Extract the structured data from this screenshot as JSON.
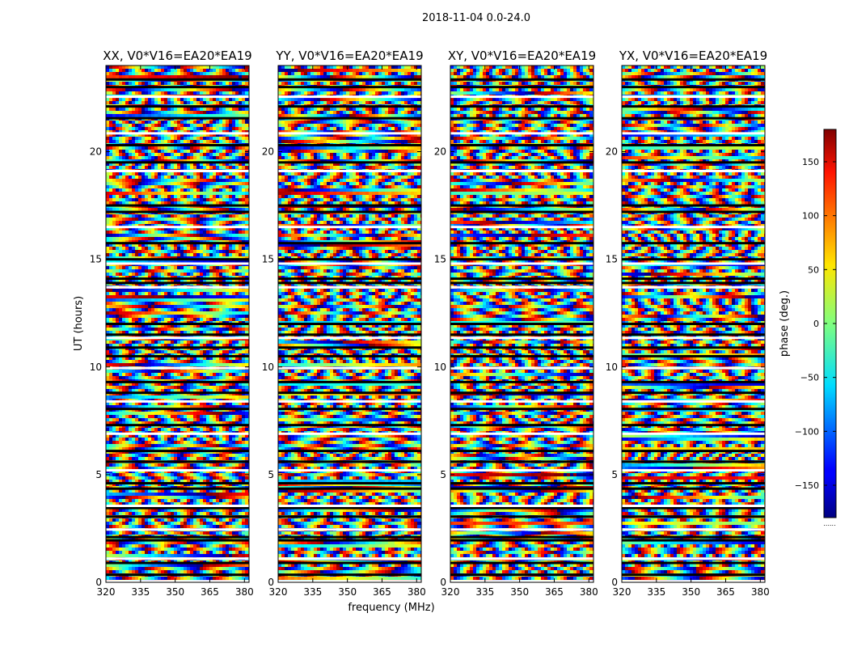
{
  "figure_title": "2018-11-04 0.0-24.0",
  "chart_data": {
    "type": "heatmap",
    "title": "2018-11-04 0.0-24.0",
    "xlabel": "frequency (MHz)",
    "ylabel": "UT (hours)",
    "xlim": [
      320,
      382
    ],
    "ylim": [
      0,
      24
    ],
    "x_ticks": [
      320,
      335,
      350,
      365,
      380
    ],
    "y_ticks": [
      0,
      5,
      10,
      15,
      20
    ],
    "panels": [
      {
        "title": "XX, V0*V16=EA20*EA19",
        "polarization": "XX"
      },
      {
        "title": "YY, V0*V16=EA20*EA19",
        "polarization": "YY"
      },
      {
        "title": "XY, V0*V16=EA20*EA19",
        "polarization": "XY"
      },
      {
        "title": "YX, V0*V16=EA20*EA19",
        "polarization": "YX"
      }
    ],
    "colorbar": {
      "label": "phase (deg.)",
      "range": [
        -180,
        180
      ],
      "ticks": [
        -150,
        -100,
        -50,
        0,
        50,
        100,
        150
      ],
      "colormap": "jet",
      "below_label": "......"
    },
    "flagged_rows_ut": [
      0.05,
      0.35,
      0.9,
      1.1,
      1.95,
      2.1,
      2.45,
      3.05,
      3.45,
      3.55,
      4.35,
      4.6,
      5.2,
      5.6,
      6.1,
      6.9,
      7.3,
      8.05,
      8.4,
      8.8,
      9.3,
      9.95,
      10.5,
      10.9,
      11.35,
      11.5,
      12.0,
      13.7,
      13.9,
      14.1,
      14.8,
      15.0,
      15.75,
      16.5,
      17.2,
      17.5,
      19.1,
      19.5,
      20.3,
      20.85,
      21.55,
      22.1,
      22.55,
      23.0,
      23.35
    ]
  }
}
